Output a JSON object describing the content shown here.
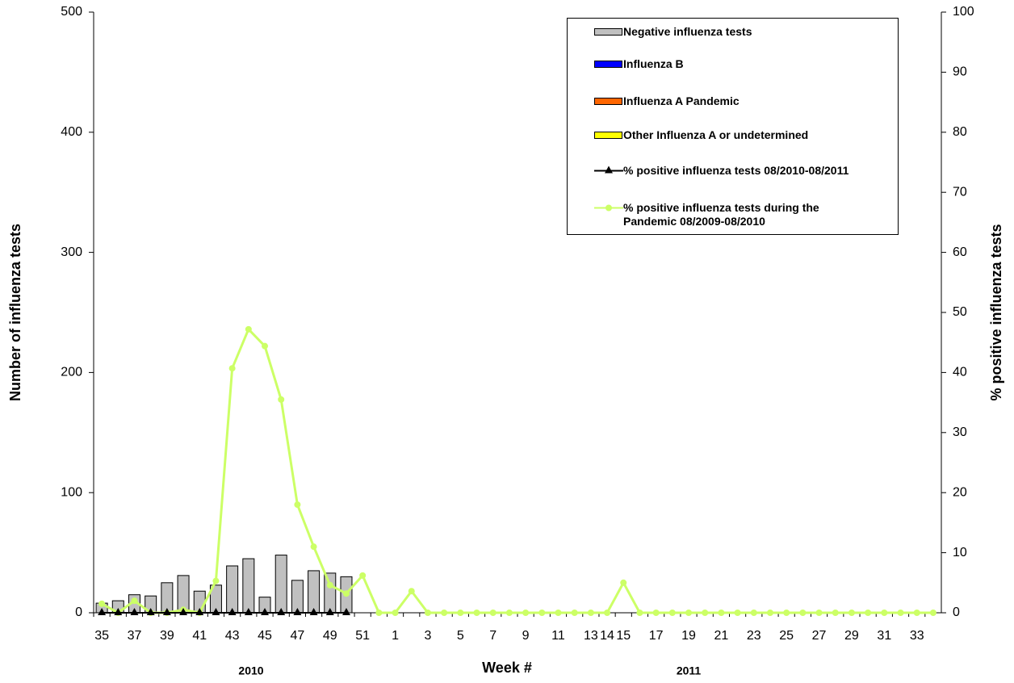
{
  "chart_data": {
    "type": "bar",
    "x_label": "Week #",
    "y_label": "Number of influenza tests",
    "y2_label": "% positive influenza tests",
    "annotations": [
      "2010",
      "2011"
    ],
    "categories": [
      "35",
      null,
      "37",
      null,
      "39",
      null,
      "41",
      null,
      "43",
      null,
      "45",
      null,
      "47",
      null,
      "49",
      null,
      "51",
      null,
      "1",
      null,
      "3",
      null,
      "5",
      null,
      "7",
      null,
      "9",
      null,
      "11",
      null,
      "13",
      "14",
      "15",
      null,
      "17",
      null,
      "19",
      null,
      "21",
      null,
      "23",
      null,
      "25",
      null,
      "27",
      null,
      "29",
      null,
      "31",
      null,
      "33",
      null
    ],
    "ylim": [
      0,
      500
    ],
    "yticks": [
      0,
      100,
      200,
      300,
      400,
      500
    ],
    "y2lim": [
      0,
      100
    ],
    "y2ticks": [
      0,
      10,
      20,
      30,
      40,
      50,
      60,
      70,
      80,
      90,
      100
    ],
    "series": [
      {
        "name": "Negative influenza tests",
        "type": "bar",
        "color": "#c0c0c0",
        "values": [
          8,
          10,
          15,
          14,
          25,
          31,
          18,
          23,
          39,
          45,
          13,
          48,
          27,
          35,
          33,
          30,
          null,
          null,
          null,
          null,
          null,
          null,
          null,
          null,
          null,
          null,
          null,
          null,
          null,
          null,
          null,
          null,
          null,
          null,
          null,
          null,
          null,
          null,
          null,
          null,
          null,
          null,
          null,
          null,
          null,
          null,
          null,
          null,
          null,
          null,
          null,
          null
        ]
      },
      {
        "name": "Influenza  B",
        "type": "bar",
        "color": "#0000ff",
        "values": [
          null,
          null,
          null,
          null,
          null,
          null,
          null,
          null,
          null,
          null,
          null,
          null,
          null,
          null,
          null,
          null,
          null,
          null,
          null,
          null,
          null,
          null,
          null,
          null,
          null,
          null,
          null,
          null,
          null,
          null,
          null,
          null,
          null,
          null,
          null,
          null,
          null,
          null,
          null,
          null,
          null,
          null,
          null,
          null,
          null,
          null,
          null,
          null,
          null,
          null,
          null,
          null
        ]
      },
      {
        "name": "Influenza  A Pandemic",
        "type": "bar",
        "color": "#ff6600",
        "values": [
          null,
          null,
          null,
          null,
          null,
          null,
          null,
          null,
          null,
          null,
          null,
          null,
          null,
          null,
          null,
          null,
          null,
          null,
          null,
          null,
          null,
          null,
          null,
          null,
          null,
          null,
          null,
          null,
          null,
          null,
          null,
          null,
          null,
          null,
          null,
          null,
          null,
          null,
          null,
          null,
          null,
          null,
          null,
          null,
          null,
          null,
          null,
          null,
          null,
          null,
          null,
          null
        ]
      },
      {
        "name": "Other Influenza  A or undetermined",
        "type": "bar",
        "color": "#ffff00",
        "values": [
          null,
          null,
          null,
          null,
          null,
          null,
          null,
          null,
          null,
          null,
          null,
          null,
          null,
          null,
          null,
          null,
          null,
          null,
          null,
          null,
          null,
          null,
          null,
          null,
          null,
          null,
          null,
          null,
          null,
          null,
          null,
          null,
          null,
          null,
          null,
          null,
          null,
          null,
          null,
          null,
          null,
          null,
          null,
          null,
          null,
          null,
          null,
          null,
          null,
          null,
          null,
          null
        ]
      },
      {
        "name": "% positive  influenza  tests  08/2010-08/2011",
        "type": "line",
        "marker": "triangle",
        "axis": "y2",
        "color": "#000000",
        "values": [
          0,
          0,
          0,
          0,
          0,
          0,
          0,
          0,
          0,
          0,
          0,
          0,
          0,
          0,
          0,
          0,
          null,
          null,
          null,
          null,
          null,
          null,
          null,
          null,
          null,
          null,
          null,
          null,
          null,
          null,
          null,
          null,
          null,
          null,
          null,
          null,
          null,
          null,
          null,
          null,
          null,
          null,
          null,
          null,
          null,
          null,
          null,
          null,
          null,
          null,
          null,
          null
        ]
      },
      {
        "name": "%  positive  influenza  tests during  the  Pandemic  08/2009-08/2010",
        "type": "line",
        "marker": "circle",
        "axis": "y2",
        "color": "#ccff66",
        "values": [
          1.5,
          0,
          2,
          0,
          0,
          0.5,
          0,
          5.3,
          40.7,
          47.2,
          44.4,
          35.5,
          18,
          11,
          4.6,
          3.2,
          6.2,
          0,
          0,
          3.6,
          0,
          0,
          0,
          0,
          0,
          0,
          0,
          0,
          0,
          0,
          0,
          0,
          5,
          0,
          0,
          0,
          0,
          0,
          0,
          0,
          0,
          0,
          0,
          0,
          0,
          0,
          0,
          0,
          0,
          0,
          0,
          0
        ]
      }
    ]
  }
}
